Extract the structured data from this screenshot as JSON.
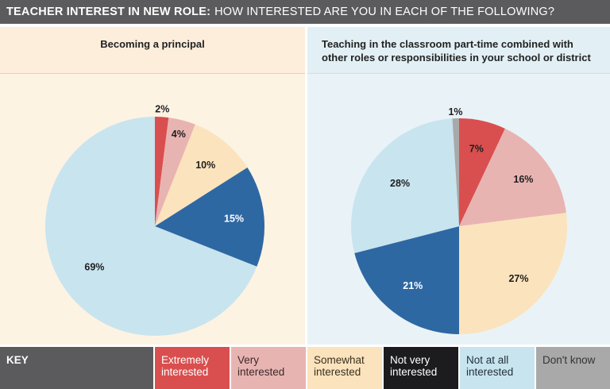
{
  "header": {
    "title_bold": "TEACHER INTEREST IN NEW ROLE:",
    "title_rest": "HOW INTERESTED ARE YOU IN EACH OF THE FOLLOWING?"
  },
  "colors": {
    "extremely": "#d94f4f",
    "very": "#e8b4b2",
    "somewhat": "#fbe3bd",
    "not_very": "#2e68a3",
    "not_at_all": "#c8e4ef",
    "dont_know": "#a9a9a9"
  },
  "chart_data": [
    {
      "type": "pie",
      "title": "Becoming a principal",
      "categories": [
        "Extremely interested",
        "Very interested",
        "Somewhat interested",
        "Not very interested",
        "Not at all interested"
      ],
      "values": [
        2,
        4,
        10,
        15,
        69
      ],
      "labels": [
        "2%",
        "4%",
        "10%",
        "15%",
        "69%"
      ]
    },
    {
      "type": "pie",
      "title": "Teaching in the classroom part-time combined with other roles or responsibilities in your school or district",
      "title_lines": [
        "Teaching in the classroom part-time combined with",
        "other roles or responsibilities in your school or district"
      ],
      "categories": [
        "Extremely interested",
        "Very interested",
        "Somewhat interested",
        "Not very interested",
        "Not at all interested",
        "Don't know"
      ],
      "values": [
        7,
        16,
        27,
        21,
        28,
        1
      ],
      "labels": [
        "7%",
        "16%",
        "27%",
        "21%",
        "28%",
        "1%"
      ]
    }
  ],
  "key": {
    "label": "KEY",
    "items": [
      {
        "lines": [
          "Extremely",
          "interested"
        ],
        "color_key": "extremely",
        "text_color": "#ffffff"
      },
      {
        "lines": [
          "Very",
          "interested"
        ],
        "color_key": "very",
        "text_color": "#3a2a2a"
      },
      {
        "lines": [
          "Somewhat",
          "interested"
        ],
        "color_key": "somewhat",
        "text_color": "#3a3020"
      },
      {
        "lines": [
          "Not very",
          "interested"
        ],
        "color_key": "not_very_key",
        "text_color": "#ffffff"
      },
      {
        "lines": [
          "Not at all",
          "interested"
        ],
        "color_key": "not_at_all",
        "text_color": "#23323a"
      },
      {
        "lines": [
          "Don't know"
        ],
        "color_key": "dont_know",
        "text_color": "#333333"
      }
    ],
    "not_very_key_color": "#1c1c1e"
  }
}
